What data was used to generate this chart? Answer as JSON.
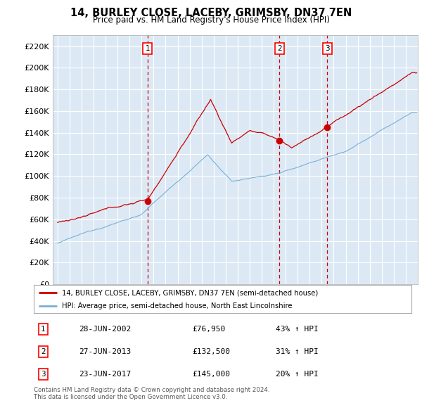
{
  "title": "14, BURLEY CLOSE, LACEBY, GRIMSBY, DN37 7EN",
  "subtitle": "Price paid vs. HM Land Registry's House Price Index (HPI)",
  "background_color": "#ffffff",
  "plot_bg_color": "#dce9f5",
  "ylim": [
    0,
    230000
  ],
  "yticks": [
    0,
    20000,
    40000,
    60000,
    80000,
    100000,
    120000,
    140000,
    160000,
    180000,
    200000,
    220000
  ],
  "sale_year_floats": [
    2002.49,
    2013.49,
    2017.47
  ],
  "sale_prices": [
    76950,
    132500,
    145000
  ],
  "sale_labels": [
    "1",
    "2",
    "3"
  ],
  "legend_line1": "14, BURLEY CLOSE, LACEBY, GRIMSBY, DN37 7EN (semi-detached house)",
  "legend_line2": "HPI: Average price, semi-detached house, North East Lincolnshire",
  "table_data": [
    [
      "1",
      "28-JUN-2002",
      "£76,950",
      "43% ↑ HPI"
    ],
    [
      "2",
      "27-JUN-2013",
      "£132,500",
      "31% ↑ HPI"
    ],
    [
      "3",
      "23-JUN-2017",
      "£145,000",
      "20% ↑ HPI"
    ]
  ],
  "footnote": "Contains HM Land Registry data © Crown copyright and database right 2024.\nThis data is licensed under the Open Government Licence v3.0.",
  "hpi_color": "#7bafd4",
  "price_color": "#cc0000",
  "vline_color": "#cc0000",
  "dot_color": "#cc0000"
}
